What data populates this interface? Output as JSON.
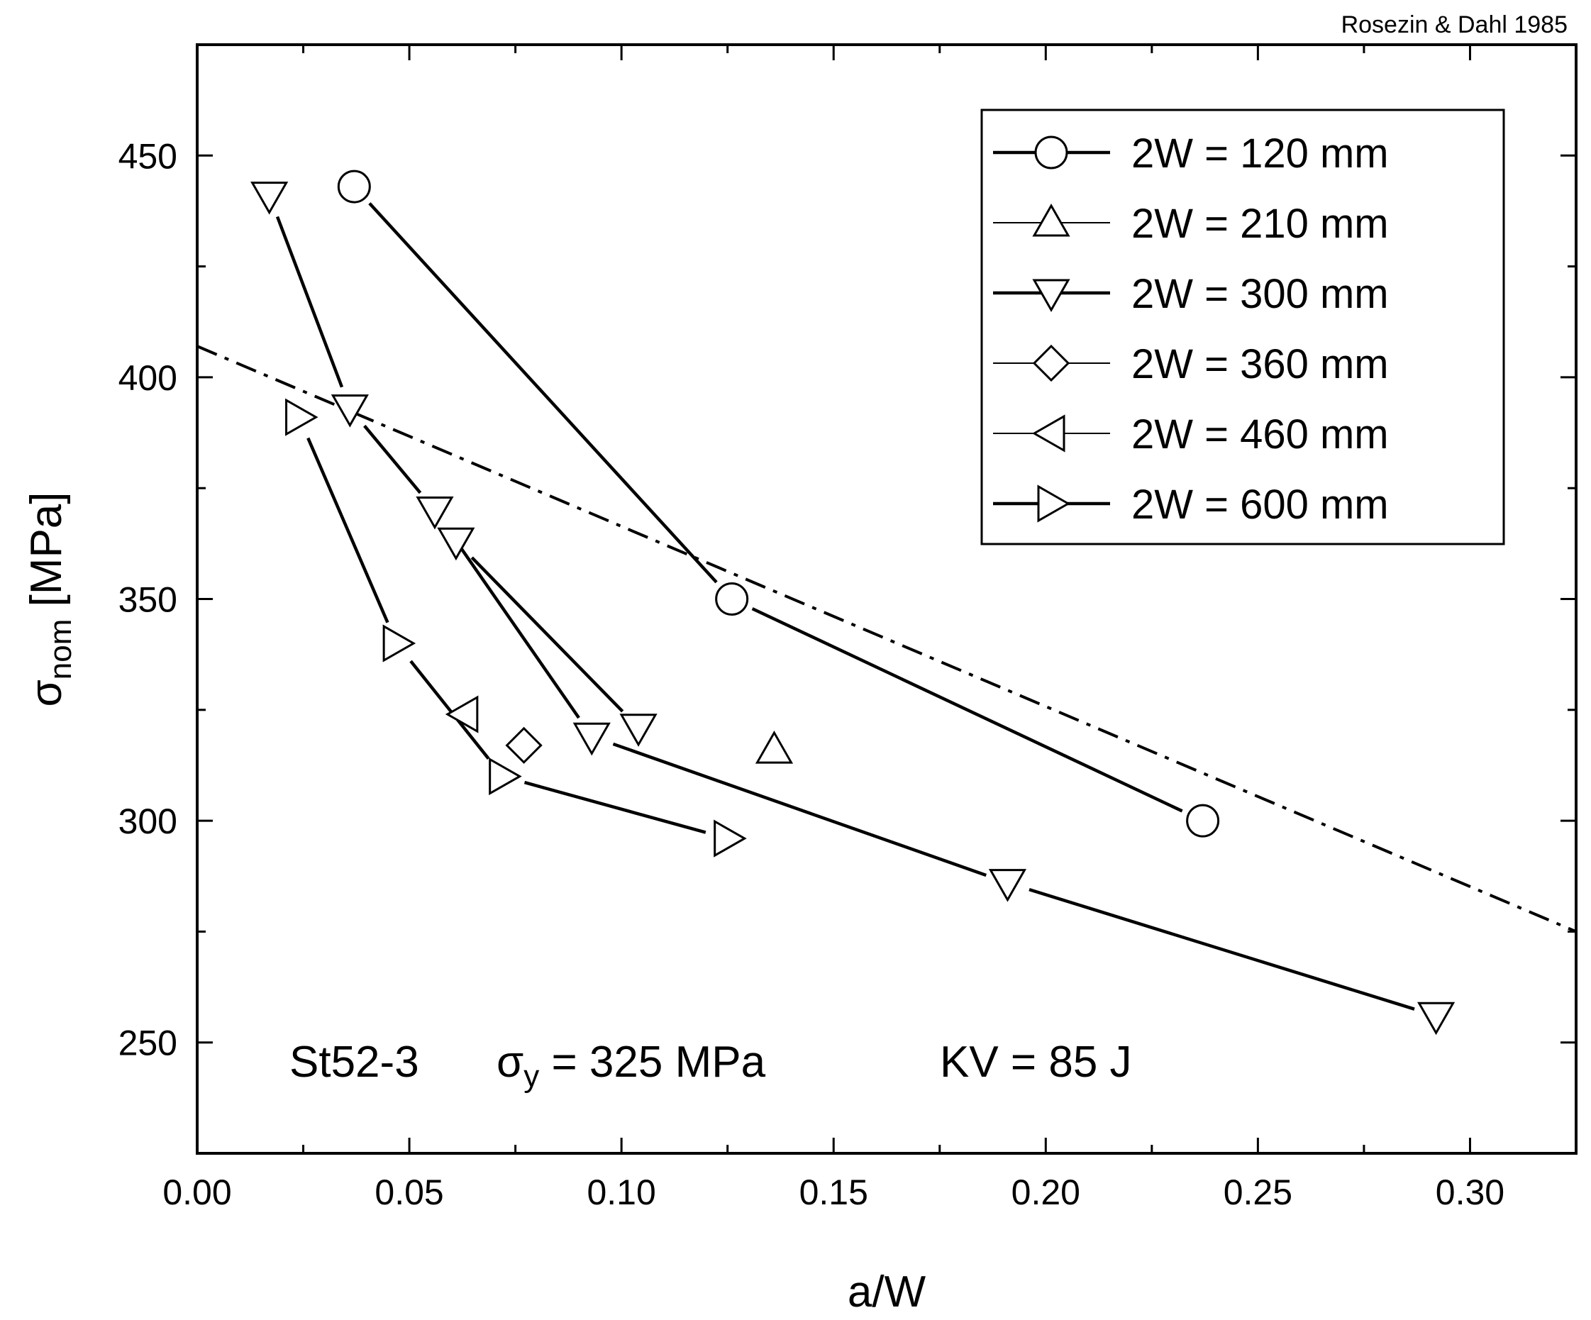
{
  "chart_data": {
    "type": "line",
    "credit": "Rosezin & Dahl 1985",
    "xlabel": "a/W",
    "ylabel": {
      "symbol": "σ",
      "subscript": "nom",
      "suffix": " [MPa]"
    },
    "xlim": [
      0.0,
      0.325
    ],
    "ylim": [
      225,
      475
    ],
    "xticks": [
      0.0,
      0.05,
      0.1,
      0.15,
      0.2,
      0.25,
      0.3
    ],
    "xtick_labels": [
      "0.00",
      "0.05",
      "0.10",
      "0.15",
      "0.20",
      "0.25",
      "0.30"
    ],
    "yticks": [
      250,
      300,
      350,
      400,
      450
    ],
    "ytick_labels": [
      "250",
      "300",
      "350",
      "400",
      "450"
    ],
    "legend_position": "top-right",
    "series": [
      {
        "name": "2W = 120 mm",
        "marker": "circle",
        "line": "thick",
        "x": [
          0.037,
          0.126,
          0.237
        ],
        "y": [
          443,
          350,
          300
        ]
      },
      {
        "name": "2W = 210 mm",
        "marker": "triangle-up",
        "line": "thin",
        "x": [
          0.136
        ],
        "y": [
          316
        ]
      },
      {
        "name": "2W = 300 mm",
        "marker": "triangle-down",
        "line": "thick",
        "x": [
          0.017,
          0.036,
          0.056,
          0.093,
          0.191,
          0.292
        ],
        "y": [
          441,
          393,
          370,
          319,
          286,
          256
        ]
      },
      {
        "name": "2W = 300 mm",
        "marker": "triangle-down",
        "line": "thick",
        "in_legend": false,
        "x": [
          0.061,
          0.104
        ],
        "y": [
          363,
          321
        ]
      },
      {
        "name": "2W = 360 mm",
        "marker": "diamond",
        "line": "thin",
        "x": [
          0.077
        ],
        "y": [
          317
        ]
      },
      {
        "name": "2W = 460 mm",
        "marker": "triangle-left",
        "line": "thin",
        "x": [
          0.063
        ],
        "y": [
          324
        ]
      },
      {
        "name": "2W = 600 mm",
        "marker": "triangle-right",
        "line": "thick",
        "x": [
          0.024,
          0.047,
          0.072,
          0.125
        ],
        "y": [
          391,
          340,
          310,
          296
        ]
      }
    ],
    "reference_line": {
      "style": "dash-dot",
      "x": [
        0.0,
        0.325
      ],
      "y": [
        407,
        275
      ]
    },
    "annotation": {
      "material": "St52-3",
      "yield_symbol": "σ",
      "yield_subscript": "y",
      "yield_value": " = 325 MPa",
      "impact": "KV = 85 J"
    }
  }
}
